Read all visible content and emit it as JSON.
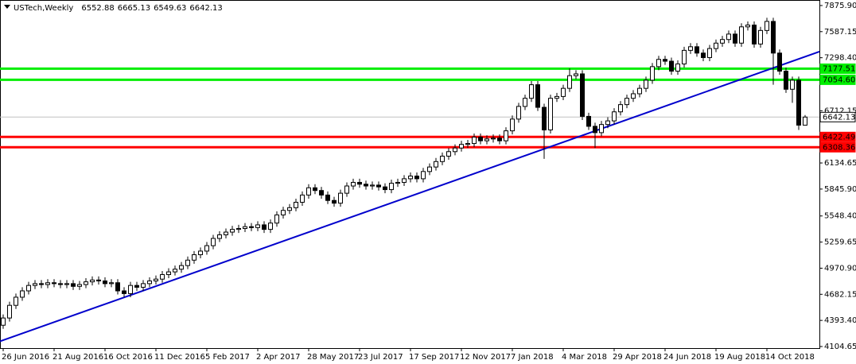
{
  "chart_data": {
    "type": "candlestick",
    "symbol": "USTech,Weekly",
    "categories": [
      "26 Jun 2016",
      null,
      null,
      null,
      null,
      null,
      null,
      null,
      "21 Aug 2016",
      null,
      null,
      null,
      null,
      null,
      null,
      null,
      "16 Oct 2016",
      null,
      null,
      null,
      null,
      null,
      null,
      null,
      "11 Dec 2016",
      null,
      null,
      null,
      null,
      null,
      null,
      null,
      "5 Feb 2017",
      null,
      null,
      null,
      null,
      null,
      null,
      null,
      "2 Apr 2017",
      null,
      null,
      null,
      null,
      null,
      null,
      null,
      "28 May 2017",
      null,
      null,
      null,
      null,
      null,
      null,
      null,
      "23 Jul 2017",
      null,
      null,
      null,
      null,
      null,
      null,
      null,
      "17 Sep 2017",
      null,
      null,
      null,
      null,
      null,
      null,
      null,
      "12 Nov 2017",
      null,
      null,
      null,
      null,
      null,
      null,
      null,
      "7 Jan 2018",
      null,
      null,
      null,
      null,
      null,
      null,
      null,
      "4 Mar 2018",
      null,
      null,
      null,
      null,
      null,
      null,
      null,
      "29 Apr 2018",
      null,
      null,
      null,
      null,
      null,
      null,
      null,
      "24 Jun 2018",
      null,
      null,
      null,
      null,
      null,
      null,
      null,
      "19 Aug 2018",
      null,
      null,
      null,
      null,
      null,
      null,
      null,
      "14 Oct 2018",
      null,
      null,
      null,
      null,
      null,
      null
    ],
    "open": [
      4340,
      4420,
      4560,
      4650,
      4720,
      4780,
      4800,
      4790,
      4810,
      4800,
      4790,
      4800,
      4770,
      4790,
      4820,
      4840,
      4830,
      4800,
      4810,
      4720,
      4690,
      4780,
      4760,
      4800,
      4830,
      4850,
      4900,
      4930,
      4960,
      5000,
      5060,
      5120,
      5160,
      5220,
      5300,
      5340,
      5370,
      5400,
      5410,
      5430,
      5420,
      5450,
      5400,
      5470,
      5560,
      5610,
      5640,
      5700,
      5780,
      5860,
      5830,
      5780,
      5720,
      5690,
      5800,
      5880,
      5920,
      5900,
      5880,
      5890,
      5870,
      5840,
      5910,
      5920,
      5960,
      5990,
      5960,
      6040,
      6090,
      6150,
      6210,
      6260,
      6300,
      6340,
      6350,
      6420,
      6380,
      6400,
      6410,
      6380,
      6490,
      6620,
      6760,
      6850,
      7000,
      6750,
      6500,
      6850,
      6870,
      6960,
      7100,
      7120,
      6650,
      6540,
      6470,
      6560,
      6600,
      6700,
      6780,
      6850,
      6900,
      6960,
      7050,
      7200,
      7280,
      7260,
      7150,
      7230,
      7380,
      7420,
      7350,
      7300,
      7400,
      7460,
      7500,
      7560,
      7460,
      7640,
      7660,
      7450,
      7600,
      7700,
      7350,
      7150,
      6950,
      7050,
      6552.88
    ],
    "high": [
      4460,
      4600,
      4690,
      4760,
      4820,
      4840,
      4840,
      4850,
      4850,
      4840,
      4840,
      4840,
      4830,
      4860,
      4880,
      4880,
      4870,
      4850,
      4850,
      4760,
      4820,
      4820,
      4840,
      4870,
      4890,
      4940,
      4970,
      5000,
      5040,
      5100,
      5160,
      5200,
      5260,
      5340,
      5380,
      5410,
      5440,
      5450,
      5470,
      5470,
      5490,
      5490,
      5510,
      5600,
      5650,
      5680,
      5740,
      5820,
      5900,
      5900,
      5870,
      5820,
      5760,
      5840,
      5920,
      5960,
      5960,
      5940,
      5930,
      5930,
      5910,
      5950,
      5960,
      6000,
      6030,
      6030,
      6080,
      6130,
      6190,
      6250,
      6300,
      6340,
      6380,
      6390,
      6460,
      6460,
      6440,
      6450,
      6450,
      6530,
      6660,
      6800,
      6890,
      7040,
      7040,
      6790,
      6890,
      6910,
      7000,
      7180,
      7160,
      7160,
      6690,
      6580,
      6600,
      6640,
      6740,
      6820,
      6890,
      6940,
      7000,
      7090,
      7240,
      7320,
      7320,
      7300,
      7270,
      7420,
      7460,
      7460,
      7390,
      7440,
      7500,
      7540,
      7600,
      7600,
      7680,
      7700,
      7700,
      7640,
      7740,
      7740,
      7390,
      7190,
      7090,
      7090,
      6665.13
    ],
    "low": [
      4300,
      4380,
      4520,
      4610,
      4680,
      4740,
      4750,
      4750,
      4760,
      4750,
      4750,
      4730,
      4730,
      4750,
      4780,
      4790,
      4760,
      4760,
      4680,
      4650,
      4650,
      4720,
      4720,
      4760,
      4790,
      4810,
      4860,
      4890,
      4920,
      4960,
      5020,
      5080,
      5120,
      5180,
      5260,
      5300,
      5330,
      5360,
      5370,
      5380,
      5380,
      5360,
      5360,
      5430,
      5520,
      5570,
      5600,
      5660,
      5740,
      5790,
      5740,
      5680,
      5650,
      5650,
      5760,
      5840,
      5860,
      5840,
      5840,
      5830,
      5800,
      5800,
      5870,
      5880,
      5920,
      5920,
      5920,
      6000,
      6050,
      6110,
      6170,
      6220,
      6260,
      6300,
      6310,
      6340,
      6340,
      6360,
      6340,
      6340,
      6450,
      6580,
      6720,
      6810,
      6710,
      6180,
      6460,
      6810,
      6830,
      6920,
      7060,
      6610,
      6500,
      6300,
      6430,
      6520,
      6560,
      6660,
      6740,
      6810,
      6860,
      6920,
      7010,
      7160,
      7220,
      7110,
      7110,
      7190,
      7340,
      7310,
      7260,
      7260,
      7360,
      7420,
      7460,
      7420,
      7420,
      7600,
      7410,
      7410,
      7560,
      7000,
      7110,
      6910,
      6800,
      6500,
      6549.63
    ],
    "close": [
      4420,
      4560,
      4650,
      4720,
      4780,
      4800,
      4790,
      4810,
      4800,
      4790,
      4800,
      4770,
      4790,
      4820,
      4840,
      4830,
      4800,
      4810,
      4720,
      4690,
      4780,
      4760,
      4800,
      4830,
      4850,
      4900,
      4930,
      4960,
      5000,
      5060,
      5120,
      5160,
      5220,
      5300,
      5340,
      5370,
      5400,
      5410,
      5430,
      5420,
      5450,
      5400,
      5470,
      5560,
      5610,
      5640,
      5700,
      5780,
      5860,
      5830,
      5780,
      5720,
      5690,
      5800,
      5880,
      5920,
      5900,
      5880,
      5890,
      5870,
      5840,
      5910,
      5920,
      5960,
      5990,
      5960,
      6040,
      6090,
      6150,
      6210,
      6260,
      6300,
      6340,
      6350,
      6420,
      6380,
      6400,
      6410,
      6380,
      6490,
      6620,
      6760,
      6850,
      7000,
      6750,
      6500,
      6850,
      6870,
      6960,
      7100,
      7120,
      6650,
      6540,
      6470,
      6560,
      6600,
      6700,
      6780,
      6850,
      6900,
      6960,
      7050,
      7200,
      7280,
      7260,
      7150,
      7230,
      7380,
      7420,
      7350,
      7300,
      7400,
      7460,
      7500,
      7560,
      7460,
      7640,
      7660,
      7450,
      7600,
      7700,
      7350,
      7150,
      6950,
      7050,
      6552.88,
      6642.13
    ],
    "up_color": "#ffffff",
    "down_color": "#000000",
    "ylim": [
      4087,
      7937
    ],
    "yticks": [
      {
        "value": 7875.9,
        "label": "7875.90"
      },
      7587.15,
      {
        "value": 7298.4,
        "label": "7298.40"
      },
      6712.15,
      6134.65,
      {
        "value": 5845.9,
        "label": "5845.90"
      },
      {
        "value": 5548.4,
        "label": "5548.40"
      },
      5259.65,
      {
        "value": 4970.9,
        "label": "4970.90"
      },
      4682.15,
      {
        "value": 4393.4,
        "label": "4393.40"
      },
      4104.65
    ],
    "price_lines": [
      {
        "value": 7177.51,
        "color": "#00ee00"
      },
      {
        "value": {
          "value": 7054.6,
          "label": "7054.60"
        },
        "color": "#00ee00"
      },
      {
        "value": 6642.13,
        "color": "#c0c0c0"
      },
      {
        "value": 6422.49,
        "color": "#ff0000"
      },
      {
        "value": 6308.36,
        "color": "#ff0000"
      }
    ],
    "trendline": {
      "start": 4175,
      "end": 7310,
      "color": "#0000cc"
    }
  }
}
